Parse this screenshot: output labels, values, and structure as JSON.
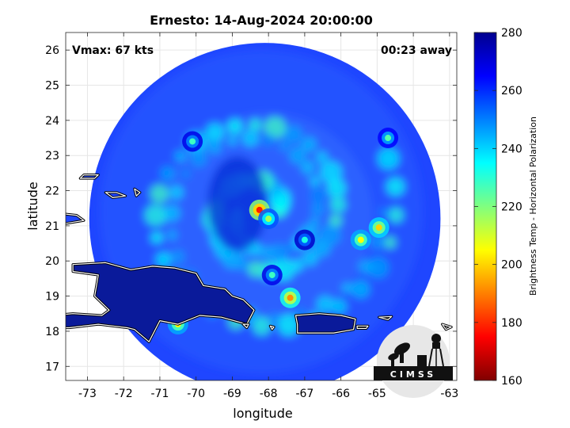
{
  "chart_data": {
    "type": "heatmap",
    "title": "Ernesto: 14-Aug-2024 20:00:00",
    "xlabel": "longitude",
    "ylabel": "latitude",
    "xlim": [
      -73.6,
      -62.8
    ],
    "ylim": [
      16.6,
      26.5
    ],
    "xticks": [
      -73,
      -72,
      -71,
      -70,
      -69,
      -68,
      -67,
      -66,
      -65,
      -64,
      -63
    ],
    "yticks": [
      17,
      18,
      19,
      20,
      21,
      22,
      23,
      24,
      25,
      26
    ],
    "grid": true,
    "annotations": {
      "left": "Vmax: 67 kts",
      "right": "00:23 away"
    },
    "colorbar": {
      "label": "Brightness Temp - Horizontal Polarization",
      "range": [
        160,
        280
      ],
      "ticks": [
        160,
        180,
        200,
        220,
        240,
        260,
        280
      ],
      "colormap": "jet"
    },
    "swath": {
      "center": [
        -68.1,
        21.2
      ],
      "radius_deg": 4.85
    },
    "storm_center": [
      -68.2,
      21.4
    ],
    "features": [
      {
        "kind": "eye-warm-core",
        "lon": -68.25,
        "lat": 21.45,
        "value": 178
      },
      {
        "kind": "eyewall",
        "lon": -68.0,
        "lat": 21.2,
        "value": 215
      },
      {
        "kind": "rainband",
        "lon": -67.4,
        "lat": 18.95,
        "value": 192
      },
      {
        "kind": "rainband",
        "lon": -68.9,
        "lat": 18.65,
        "value": 200
      },
      {
        "kind": "rainband",
        "lon": -67.9,
        "lat": 19.6,
        "value": 228
      },
      {
        "kind": "rainband",
        "lon": -67.0,
        "lat": 20.6,
        "value": 232
      },
      {
        "kind": "rainband",
        "lon": -65.45,
        "lat": 20.6,
        "value": 205
      },
      {
        "kind": "rainband",
        "lon": -64.95,
        "lat": 20.95,
        "value": 200
      },
      {
        "kind": "rainband",
        "lon": -64.7,
        "lat": 23.5,
        "value": 225
      },
      {
        "kind": "rainband",
        "lon": -70.1,
        "lat": 23.4,
        "value": 228
      },
      {
        "kind": "rainband",
        "lon": -70.5,
        "lat": 18.2,
        "value": 205
      }
    ]
  },
  "logo": {
    "text": "CIMSS"
  }
}
